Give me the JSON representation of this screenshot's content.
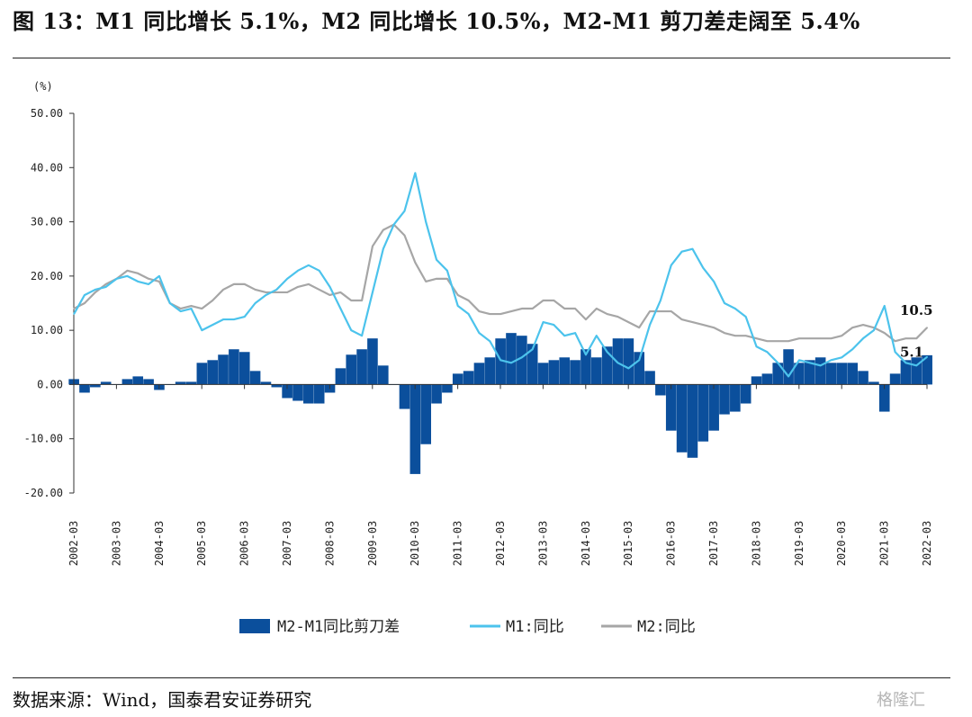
{
  "title": "图 13：M1 同比增长 5.1%，M2 同比增长 10.5%，M2-M1 剪刀差走阔至 5.4%",
  "source": "数据来源：Wind，国泰君安证券研究",
  "watermark": "格隆汇",
  "colors": {
    "spread": "#0b4f9c",
    "m1": "#4cc3ec",
    "m2": "#a6a6a6",
    "axis": "#333333"
  },
  "chart_data": {
    "type": "line",
    "ylabel": "(%)",
    "ylim": [
      -20,
      50
    ],
    "ytick_values": [
      -20,
      -10,
      0,
      10,
      20,
      30,
      40,
      50
    ],
    "ytick_labels": [
      "-20.00",
      "-10.00",
      "0.00",
      "10.00",
      "20.00",
      "30.00",
      "40.00",
      "50.00"
    ],
    "x_range": [
      2002.167,
      2022.167
    ],
    "xtick_values": [
      2002.167,
      2003.167,
      2004.167,
      2005.167,
      2006.167,
      2007.167,
      2008.167,
      2009.167,
      2010.167,
      2011.167,
      2012.167,
      2013.167,
      2014.167,
      2015.167,
      2016.167,
      2017.167,
      2018.167,
      2019.167,
      2020.167,
      2021.167,
      2022.167
    ],
    "xtick_labels": [
      "2002-03",
      "2003-03",
      "2004-03",
      "2005-03",
      "2006-03",
      "2007-03",
      "2008-03",
      "2009-03",
      "2010-03",
      "2011-03",
      "2012-03",
      "2013-03",
      "2014-03",
      "2015-03",
      "2016-03",
      "2017-03",
      "2018-03",
      "2019-03",
      "2020-03",
      "2021-03",
      "2022-03"
    ],
    "end_labels": [
      {
        "text": "10.5",
        "x": 2022.167,
        "y": 10.5
      },
      {
        "text": "5.1",
        "x": 2022.167,
        "y": 5.1
      }
    ],
    "legend": [
      "M2-M1同比剪刀差",
      "M1:同比",
      "M2:同比"
    ],
    "legend_position": "bottom",
    "series": [
      {
        "name": "M1:同比",
        "x": [
          2002.17,
          2002.42,
          2002.67,
          2002.92,
          2003.17,
          2003.42,
          2003.67,
          2003.92,
          2004.17,
          2004.42,
          2004.67,
          2004.92,
          2005.17,
          2005.42,
          2005.67,
          2005.92,
          2006.17,
          2006.42,
          2006.67,
          2006.92,
          2007.17,
          2007.42,
          2007.67,
          2007.92,
          2008.17,
          2008.42,
          2008.67,
          2008.92,
          2009.17,
          2009.42,
          2009.67,
          2009.92,
          2010.17,
          2010.42,
          2010.67,
          2010.92,
          2011.17,
          2011.42,
          2011.67,
          2011.92,
          2012.17,
          2012.42,
          2012.67,
          2012.92,
          2013.17,
          2013.42,
          2013.67,
          2013.92,
          2014.17,
          2014.42,
          2014.67,
          2014.92,
          2015.17,
          2015.42,
          2015.67,
          2015.92,
          2016.17,
          2016.42,
          2016.67,
          2016.92,
          2017.17,
          2017.42,
          2017.67,
          2017.92,
          2018.17,
          2018.42,
          2018.67,
          2018.92,
          2019.17,
          2019.42,
          2019.67,
          2019.92,
          2020.17,
          2020.42,
          2020.67,
          2020.92,
          2021.17,
          2021.42,
          2021.67,
          2021.92,
          2022.17
        ],
        "values": [
          13.0,
          16.5,
          17.5,
          18.0,
          19.5,
          20.0,
          19.0,
          18.5,
          20.0,
          15.0,
          13.5,
          14.0,
          10.0,
          11.0,
          12.0,
          12.0,
          12.5,
          15.0,
          16.5,
          17.5,
          19.5,
          21.0,
          22.0,
          21.0,
          18.0,
          14.0,
          10.0,
          9.0,
          17.0,
          25.0,
          29.5,
          32.0,
          39.0,
          30.0,
          23.0,
          21.0,
          14.5,
          13.0,
          9.5,
          8.0,
          4.5,
          4.0,
          5.0,
          6.5,
          11.5,
          11.0,
          9.0,
          9.5,
          5.5,
          9.0,
          6.0,
          4.0,
          3.0,
          4.5,
          11.0,
          15.5,
          22.0,
          24.5,
          25.0,
          21.5,
          19.0,
          15.0,
          14.0,
          12.5,
          7.0,
          6.0,
          4.0,
          1.5,
          4.5,
          4.0,
          3.5,
          4.5,
          5.0,
          6.5,
          8.5,
          10.0,
          14.5,
          6.0,
          4.0,
          3.5,
          5.1
        ]
      },
      {
        "name": "M2:同比",
        "x": [
          2002.17,
          2002.42,
          2002.67,
          2002.92,
          2003.17,
          2003.42,
          2003.67,
          2003.92,
          2004.17,
          2004.42,
          2004.67,
          2004.92,
          2005.17,
          2005.42,
          2005.67,
          2005.92,
          2006.17,
          2006.42,
          2006.67,
          2006.92,
          2007.17,
          2007.42,
          2007.67,
          2007.92,
          2008.17,
          2008.42,
          2008.67,
          2008.92,
          2009.17,
          2009.42,
          2009.67,
          2009.92,
          2010.17,
          2010.42,
          2010.67,
          2010.92,
          2011.17,
          2011.42,
          2011.67,
          2011.92,
          2012.17,
          2012.42,
          2012.67,
          2012.92,
          2013.17,
          2013.42,
          2013.67,
          2013.92,
          2014.17,
          2014.42,
          2014.67,
          2014.92,
          2015.17,
          2015.42,
          2015.67,
          2015.92,
          2016.17,
          2016.42,
          2016.67,
          2016.92,
          2017.17,
          2017.42,
          2017.67,
          2017.92,
          2018.17,
          2018.42,
          2018.67,
          2018.92,
          2019.17,
          2019.42,
          2019.67,
          2019.92,
          2020.17,
          2020.42,
          2020.67,
          2020.92,
          2021.17,
          2021.42,
          2021.67,
          2021.92,
          2022.17
        ],
        "values": [
          14.0,
          15.0,
          17.0,
          18.5,
          19.5,
          21.0,
          20.5,
          19.5,
          19.0,
          15.0,
          14.0,
          14.5,
          14.0,
          15.5,
          17.5,
          18.5,
          18.5,
          17.5,
          17.0,
          17.0,
          17.0,
          18.0,
          18.5,
          17.5,
          16.5,
          17.0,
          15.5,
          15.5,
          25.5,
          28.5,
          29.5,
          27.5,
          22.5,
          19.0,
          19.5,
          19.5,
          16.5,
          15.5,
          13.5,
          13.0,
          13.0,
          13.5,
          14.0,
          14.0,
          15.5,
          15.5,
          14.0,
          14.0,
          12.0,
          14.0,
          13.0,
          12.5,
          11.5,
          10.5,
          13.5,
          13.5,
          13.5,
          12.0,
          11.5,
          11.0,
          10.5,
          9.5,
          9.0,
          9.0,
          8.5,
          8.0,
          8.0,
          8.0,
          8.5,
          8.5,
          8.5,
          8.5,
          9.0,
          10.5,
          11.0,
          10.5,
          9.5,
          8.0,
          8.5,
          8.5,
          10.5
        ]
      },
      {
        "name": "M2-M1同比剪刀差",
        "x": [
          2002.17,
          2002.42,
          2002.67,
          2002.92,
          2003.17,
          2003.42,
          2003.67,
          2003.92,
          2004.17,
          2004.42,
          2004.67,
          2004.92,
          2005.17,
          2005.42,
          2005.67,
          2005.92,
          2006.17,
          2006.42,
          2006.67,
          2006.92,
          2007.17,
          2007.42,
          2007.67,
          2007.92,
          2008.17,
          2008.42,
          2008.67,
          2008.92,
          2009.17,
          2009.42,
          2009.67,
          2009.92,
          2010.17,
          2010.42,
          2010.67,
          2010.92,
          2011.17,
          2011.42,
          2011.67,
          2011.92,
          2012.17,
          2012.42,
          2012.67,
          2012.92,
          2013.17,
          2013.42,
          2013.67,
          2013.92,
          2014.17,
          2014.42,
          2014.67,
          2014.92,
          2015.17,
          2015.42,
          2015.67,
          2015.92,
          2016.17,
          2016.42,
          2016.67,
          2016.92,
          2017.17,
          2017.42,
          2017.67,
          2017.92,
          2018.17,
          2018.42,
          2018.67,
          2018.92,
          2019.17,
          2019.42,
          2019.67,
          2019.92,
          2020.17,
          2020.42,
          2020.67,
          2020.92,
          2021.17,
          2021.42,
          2021.67,
          2021.92,
          2022.17
        ],
        "values": [
          1.0,
          -1.5,
          -0.5,
          0.5,
          0.0,
          1.0,
          1.5,
          1.0,
          -1.0,
          0.0,
          0.5,
          0.5,
          4.0,
          4.5,
          5.5,
          6.5,
          6.0,
          2.5,
          0.5,
          -0.5,
          -2.5,
          -3.0,
          -3.5,
          -3.5,
          -1.5,
          3.0,
          5.5,
          6.5,
          8.5,
          3.5,
          0.0,
          -4.5,
          -16.5,
          -11.0,
          -3.5,
          -1.5,
          2.0,
          2.5,
          4.0,
          5.0,
          8.5,
          9.5,
          9.0,
          7.5,
          4.0,
          4.5,
          5.0,
          4.5,
          6.5,
          5.0,
          7.0,
          8.5,
          8.5,
          6.0,
          2.5,
          -2.0,
          -8.5,
          -12.5,
          -13.5,
          -10.5,
          -8.5,
          -5.5,
          -5.0,
          -3.5,
          1.5,
          2.0,
          4.0,
          6.5,
          4.0,
          4.5,
          5.0,
          4.0,
          4.0,
          4.0,
          2.5,
          0.5,
          -5.0,
          2.0,
          4.5,
          5.0,
          5.4
        ]
      }
    ]
  }
}
